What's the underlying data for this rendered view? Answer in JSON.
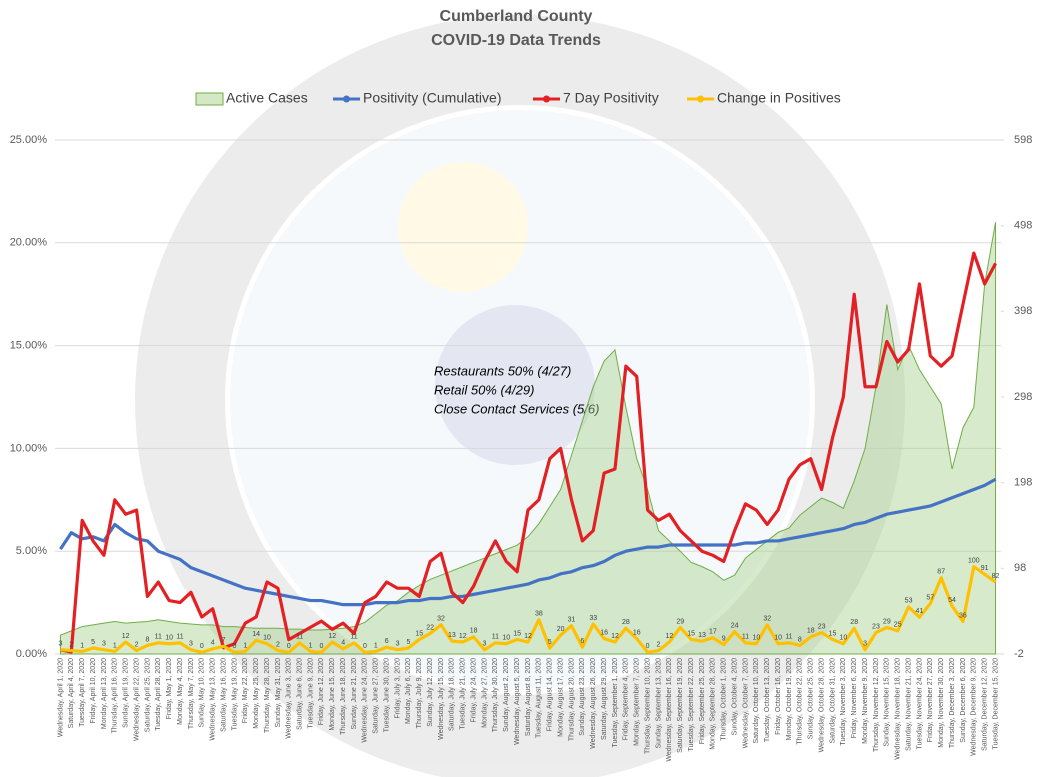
{
  "chart_data": {
    "type": "combo",
    "title": "Cumberland County",
    "subtitle": "COVID-19 Data Trends",
    "annotation": [
      "Restaurants 50% (4/27)",
      "Retail 50% (4/29)",
      "Close Contact Services (5/6)"
    ],
    "categories": [
      "Wednesday, April 1, 2020",
      "Saturday, April 4, 2020",
      "Tuesday, April 7, 2020",
      "Friday, April 10, 2020",
      "Monday, April 13, 2020",
      "Thursday, April 16, 2020",
      "Sunday, April 19, 2020",
      "Wednesday, April 22, 2020",
      "Saturday, April 25, 2020",
      "Tuesday, April 28, 2020",
      "Friday, May 1, 2020",
      "Monday, May 4, 2020",
      "Thursday, May 7, 2020",
      "Sunday, May 10, 2020",
      "Wednesday, May 13, 2020",
      "Saturday, May 16, 2020",
      "Tuesday, May 19, 2020",
      "Friday, May 22, 2020",
      "Monday, May 25, 2020",
      "Thursday, May 28, 2020",
      "Sunday, May 31, 2020",
      "Wednesday, June 3, 2020",
      "Saturday, June 6, 2020",
      "Tuesday, June 9, 2020",
      "Friday, June 12, 2020",
      "Monday, June 15, 2020",
      "Thursday, June 18, 2020",
      "Sunday, June 21, 2020",
      "Wednesday, June 24, 2020",
      "Saturday, June 27, 2020",
      "Tuesday, June 30, 2020",
      "Friday, July 3, 2020",
      "Monday, July 6, 2020",
      "Thursday, July 9, 2020",
      "Sunday, July 12, 2020",
      "Wednesday, July 15, 2020",
      "Saturday, July 18, 2020",
      "Tuesday, July 21, 2020",
      "Friday, July 24, 2020",
      "Monday, July 27, 2020",
      "Thursday, July 30, 2020",
      "Sunday, August 2, 2020",
      "Wednesday, August 5, 2020",
      "Saturday, August 8, 2020",
      "Tuesday, August 11, 2020",
      "Friday, August 14, 2020",
      "Monday, August 17, 2020",
      "Thursday, August 20, 2020",
      "Sunday, August 23, 2020",
      "Wednesday, August 26, 2020",
      "Saturday, August 29, 2020",
      "Tuesday, September 1, 2020",
      "Friday, September 4, 2020",
      "Monday, September 7, 2020",
      "Thursday, September 10, 2020",
      "Sunday, September 13, 2020",
      "Wednesday, September 16, 2020",
      "Saturday, September 19, 2020",
      "Tuesday, September 22, 2020",
      "Friday, September 25, 2020",
      "Monday, September 28, 2020",
      "Thursday, October 1, 2020",
      "Sunday, October 4, 2020",
      "Wednesday, October 7, 2020",
      "Saturday, October 10, 2020",
      "Tuesday, October 13, 2020",
      "Friday, October 16, 2020",
      "Monday, October 19, 2020",
      "Thursday, October 22, 2020",
      "Sunday, October 25, 2020",
      "Wednesday, October 28, 2020",
      "Saturday, October 31, 2020",
      "Tuesday, November 3, 2020",
      "Friday, November 6, 2020",
      "Monday, November 9, 2020",
      "Thursday, November 12, 2020",
      "Sunday, November 15, 2020",
      "Wednesday, November 18, 2020",
      "Saturday, November 21, 2020",
      "Tuesday, November 24, 2020",
      "Friday, November 27, 2020",
      "Monday, November 30, 2020",
      "Thursday, December 3, 2020",
      "Sunday, December 6, 2020",
      "Wednesday, December 9, 2020",
      "Saturday, December 12, 2020",
      "Tuesday, December 15, 2020"
    ],
    "series": [
      {
        "name": "Active Cases",
        "type": "area",
        "axis": "y2",
        "color": "#a9d18e",
        "values": [
          20,
          25,
          30,
          32,
          34,
          36,
          34,
          35,
          36,
          38,
          36,
          34,
          33,
          32,
          32,
          30,
          30,
          29,
          28,
          28,
          28,
          27,
          27,
          26,
          26,
          27,
          28,
          30,
          35,
          45,
          55,
          60,
          70,
          78,
          85,
          90,
          95,
          100,
          105,
          110,
          115,
          120,
          125,
          135,
          150,
          170,
          190,
          230,
          270,
          310,
          340,
          353,
          286,
          226,
          190,
          142,
          130,
          118,
          105,
          100,
          94,
          84,
          90,
          110,
          120,
          130,
          140,
          145,
          160,
          170,
          180,
          175,
          168,
          200,
          238,
          310,
          406,
          330,
          358,
          330,
          310,
          290,
          214,
          262,
          286,
          430,
          502
        ]
      },
      {
        "name": "Positivity (Cumulative)",
        "type": "line",
        "color": "#4472c4",
        "values": [
          5.1,
          5.9,
          5.6,
          5.7,
          5.5,
          6.3,
          5.9,
          5.6,
          5.5,
          5.0,
          4.8,
          4.6,
          4.2,
          4.0,
          3.8,
          3.6,
          3.4,
          3.2,
          3.1,
          3.0,
          2.9,
          2.8,
          2.7,
          2.6,
          2.6,
          2.5,
          2.4,
          2.4,
          2.4,
          2.5,
          2.5,
          2.5,
          2.6,
          2.6,
          2.7,
          2.7,
          2.8,
          2.8,
          2.9,
          3.0,
          3.1,
          3.2,
          3.3,
          3.4,
          3.6,
          3.7,
          3.9,
          4.0,
          4.2,
          4.3,
          4.5,
          4.8,
          5.0,
          5.1,
          5.2,
          5.2,
          5.3,
          5.3,
          5.3,
          5.3,
          5.3,
          5.3,
          5.3,
          5.4,
          5.4,
          5.5,
          5.5,
          5.6,
          5.7,
          5.8,
          5.9,
          6.0,
          6.1,
          6.3,
          6.4,
          6.6,
          6.8,
          6.9,
          7.0,
          7.1,
          7.2,
          7.4,
          7.6,
          7.8,
          8.0,
          8.2,
          8.5
        ]
      },
      {
        "name": "7 Day Positivity",
        "type": "line",
        "color": "#e32023",
        "values": [
          0.2,
          0.1,
          6.5,
          5.5,
          4.8,
          7.5,
          6.8,
          7.0,
          2.8,
          3.5,
          2.6,
          2.5,
          3.0,
          1.8,
          2.2,
          0.3,
          0.5,
          1.5,
          1.8,
          3.5,
          3.2,
          0.7,
          1.0,
          1.3,
          1.6,
          1.2,
          1.5,
          1.0,
          2.5,
          2.8,
          3.5,
          3.2,
          3.2,
          2.8,
          4.5,
          4.9,
          3.0,
          2.5,
          3.3,
          4.5,
          5.5,
          4.5,
          4.0,
          7.0,
          7.5,
          9.5,
          10.0,
          7.5,
          5.5,
          6.0,
          8.8,
          9.0,
          14.0,
          13.5,
          7.0,
          6.5,
          6.8,
          6.0,
          5.5,
          5.0,
          4.8,
          4.5,
          6.0,
          7.3,
          7.0,
          6.3,
          7.0,
          8.5,
          9.2,
          9.5,
          8.0,
          10.5,
          12.5,
          17.5,
          13.0,
          13.0,
          15.2,
          14.2,
          14.8,
          18.0,
          14.5,
          14.0,
          14.5,
          17.0,
          19.5,
          18.0,
          19.0
        ]
      },
      {
        "name": "Change in Positives",
        "type": "line",
        "axis": "y2",
        "color": "#ffc000",
        "values": [
          3,
          2,
          1,
          5,
          3,
          1,
          12,
          2,
          8,
          11,
          10,
          11,
          3,
          0,
          4,
          7,
          0,
          1,
          14,
          10,
          2,
          0,
          11,
          1,
          0,
          12,
          4,
          11,
          0,
          1,
          6,
          3,
          5,
          15,
          22,
          32,
          13,
          12,
          18,
          3,
          11,
          10,
          15,
          12,
          38,
          5,
          20,
          31,
          6,
          33,
          16,
          12,
          28,
          16,
          0,
          2,
          12,
          29,
          15,
          13,
          17,
          9,
          24,
          11,
          10,
          32,
          10,
          11,
          8,
          18,
          23,
          15,
          10,
          28,
          3,
          23,
          29,
          25,
          53,
          41,
          57,
          87,
          54,
          36,
          100,
          91,
          82
        ]
      }
    ],
    "ylim": [
      0,
      25
    ],
    "yticks": [
      {
        "value": 0,
        "label": "0.00%"
      },
      {
        "value": 5,
        "label": "5.00%"
      },
      {
        "value": 10,
        "label": "10.00%"
      },
      {
        "value": 15,
        "label": "15.00%"
      },
      {
        "value": 20,
        "label": "20.00%"
      },
      {
        "value": 25,
        "label": "25.00%"
      }
    ],
    "y2lim": [
      -2,
      598
    ],
    "y2ticks": [
      -2,
      98,
      198,
      298,
      398,
      498,
      598
    ],
    "grid": true,
    "legend": "top"
  }
}
